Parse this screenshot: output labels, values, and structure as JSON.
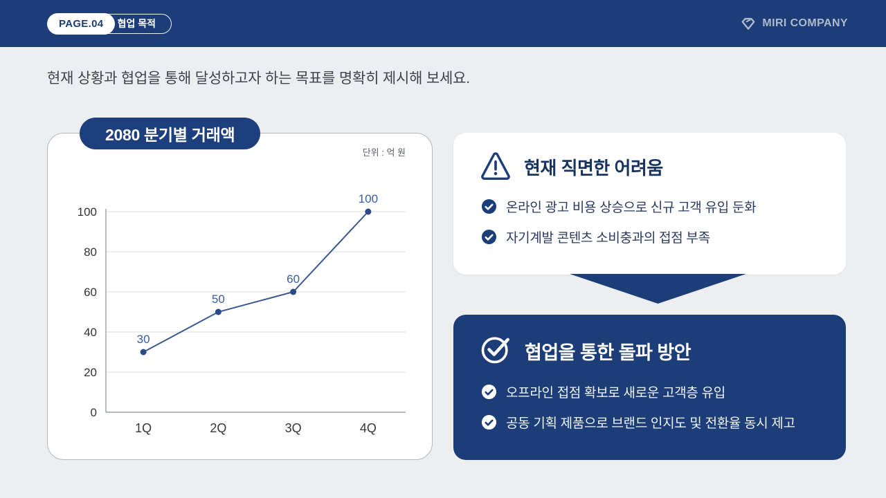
{
  "header": {
    "page_label": "PAGE.04",
    "section_label": "협업 목적",
    "brand": "MIRI COMPANY"
  },
  "subtitle": "현재 상황과 협업을 통해 달성하고자 하는 목표를 명확히 제시해 보세요.",
  "chart_data": {
    "type": "line",
    "title": "2080 분기별 거래액",
    "unit_label": "단위 : 억 원",
    "categories": [
      "1Q",
      "2Q",
      "3Q",
      "4Q"
    ],
    "values": [
      30,
      50,
      60,
      100
    ],
    "ylim": [
      0,
      100
    ],
    "yticks": [
      0,
      20,
      40,
      60,
      80,
      100
    ],
    "grid": true,
    "legend": false,
    "line_color": "#3a5693",
    "point_color": "#2c4a87",
    "label_color": "#3a5ba8"
  },
  "problem_card": {
    "icon": "warning-triangle-icon",
    "title": "현재 직면한 어려움",
    "items": [
      "온라인 광고 비용 상승으로 신규 고객 유입 둔화",
      "자기계발 콘텐츠 소비충과의 접점 부족"
    ]
  },
  "solution_card": {
    "icon": "check-circle-icon",
    "title": "협업을 통한 돌파 방안",
    "items": [
      "오프라인 접점 확보로 새로운 고객층 유입",
      "공동 기획 제품으로 브랜드 인지도 및 전환율 동시 제고"
    ]
  },
  "colors": {
    "navy": "#1c3d78",
    "badge_navy": "#1e3f7d",
    "background": "#edeef0",
    "title_navy": "#17335f",
    "body_text": "#2a3a5e",
    "subtitle_text": "#3d424d",
    "brand_text": "#aeb9cc"
  }
}
